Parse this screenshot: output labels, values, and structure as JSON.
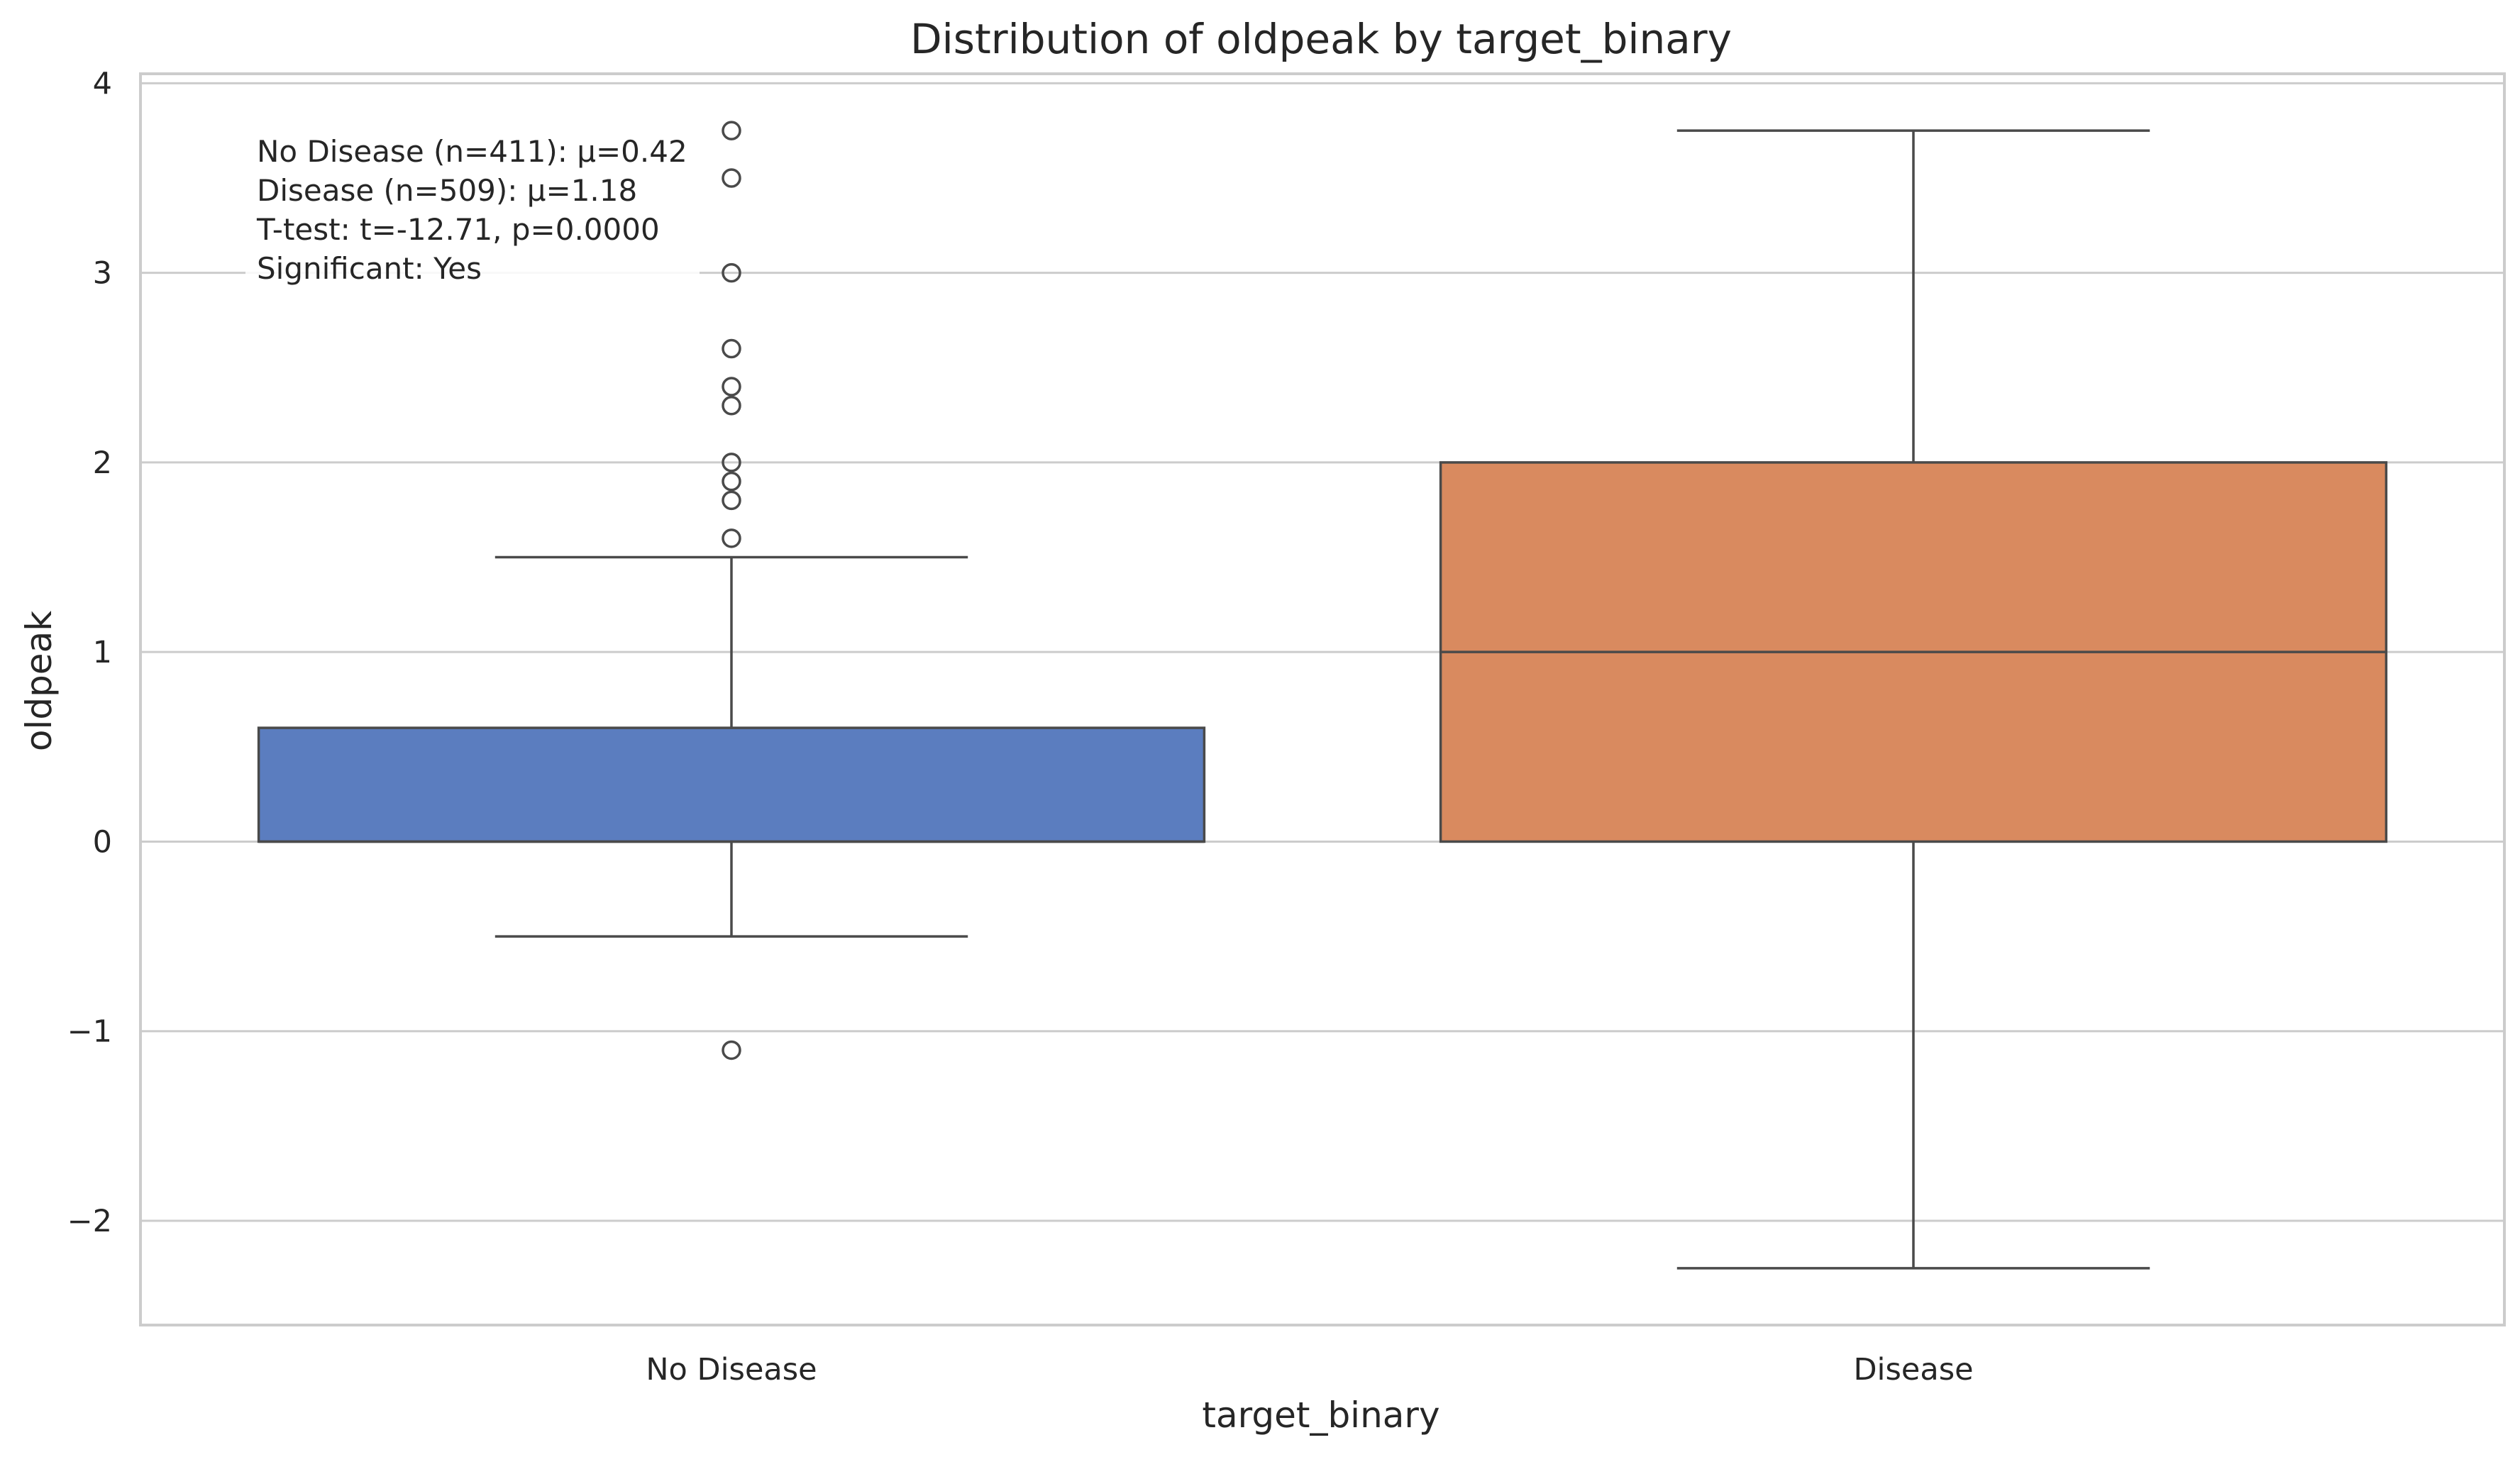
{
  "chart_data": {
    "type": "box",
    "title": "Distribution of oldpeak by target_binary",
    "xlabel": "target_binary",
    "ylabel": "oldpeak",
    "ylim": [
      -2.55,
      4.05
    ],
    "yticks": [
      -2,
      -1,
      0,
      1,
      2,
      3,
      4
    ],
    "ytick_labels": [
      "−2",
      "−1",
      "0",
      "1",
      "2",
      "3",
      "4"
    ],
    "grid": true,
    "categories": [
      "No Disease",
      "Disease"
    ],
    "boxes": [
      {
        "category": "No Disease",
        "color": "#5b7dbf",
        "whisker_low": -0.5,
        "q1": 0.0,
        "median": 0.0,
        "q3": 0.6,
        "whisker_high": 1.5,
        "outliers": [
          3.75,
          3.5,
          3.0,
          2.6,
          2.4,
          2.3,
          2.0,
          1.9,
          1.8,
          1.6,
          -1.1
        ]
      },
      {
        "category": "Disease",
        "color": "#d98a5f",
        "whisker_low": -2.25,
        "q1": 0.0,
        "median": 1.0,
        "q3": 2.0,
        "whisker_high": 3.75,
        "outliers": []
      }
    ],
    "annotation": [
      "No Disease (n=411): μ=0.42",
      "Disease (n=509): μ=1.18",
      "T-test: t=-12.71, p=0.0000",
      "Significant: Yes"
    ]
  }
}
